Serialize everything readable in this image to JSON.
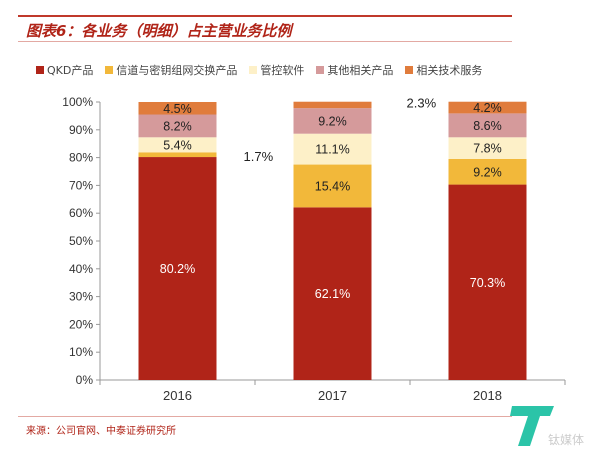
{
  "title": "图表6：各业务（明细）占主营业务比例",
  "source": "来源：公司官网、中泰证券研究所",
  "watermark": "钛媒体",
  "chart_data": {
    "type": "bar",
    "stacked": true,
    "categories": [
      "2016",
      "2017",
      "2018"
    ],
    "ylim": [
      0,
      100
    ],
    "yticks": [
      "0%",
      "10%",
      "20%",
      "30%",
      "40%",
      "50%",
      "60%",
      "70%",
      "80%",
      "90%",
      "100%"
    ],
    "legend_position": "top",
    "series": [
      {
        "name": "QKD产品",
        "color": "#B02418",
        "values": [
          80.2,
          62.1,
          70.3
        ],
        "labels": [
          "80.2%",
          "62.1%",
          "70.3%"
        ]
      },
      {
        "name": "信道与密钥组网交换产品",
        "color": "#F2B83A",
        "values": [
          1.7,
          15.4,
          9.2
        ],
        "labels": [
          "1.7%",
          "15.4%",
          "9.2%"
        ]
      },
      {
        "name": "管控软件",
        "color": "#FDF0C8",
        "values": [
          5.4,
          11.1,
          7.8
        ],
        "labels": [
          "5.4%",
          "11.1%",
          "7.8%"
        ]
      },
      {
        "name": "其他相关产品",
        "color": "#D59A9B",
        "values": [
          8.2,
          9.2,
          8.6
        ],
        "labels": [
          "8.2%",
          "9.2%",
          "8.6%"
        ]
      },
      {
        "name": "相关技术服务",
        "color": "#E07C3C",
        "values": [
          4.5,
          2.3,
          4.2
        ],
        "labels": [
          "4.5%",
          "2.3%",
          "4.2%"
        ]
      }
    ]
  }
}
